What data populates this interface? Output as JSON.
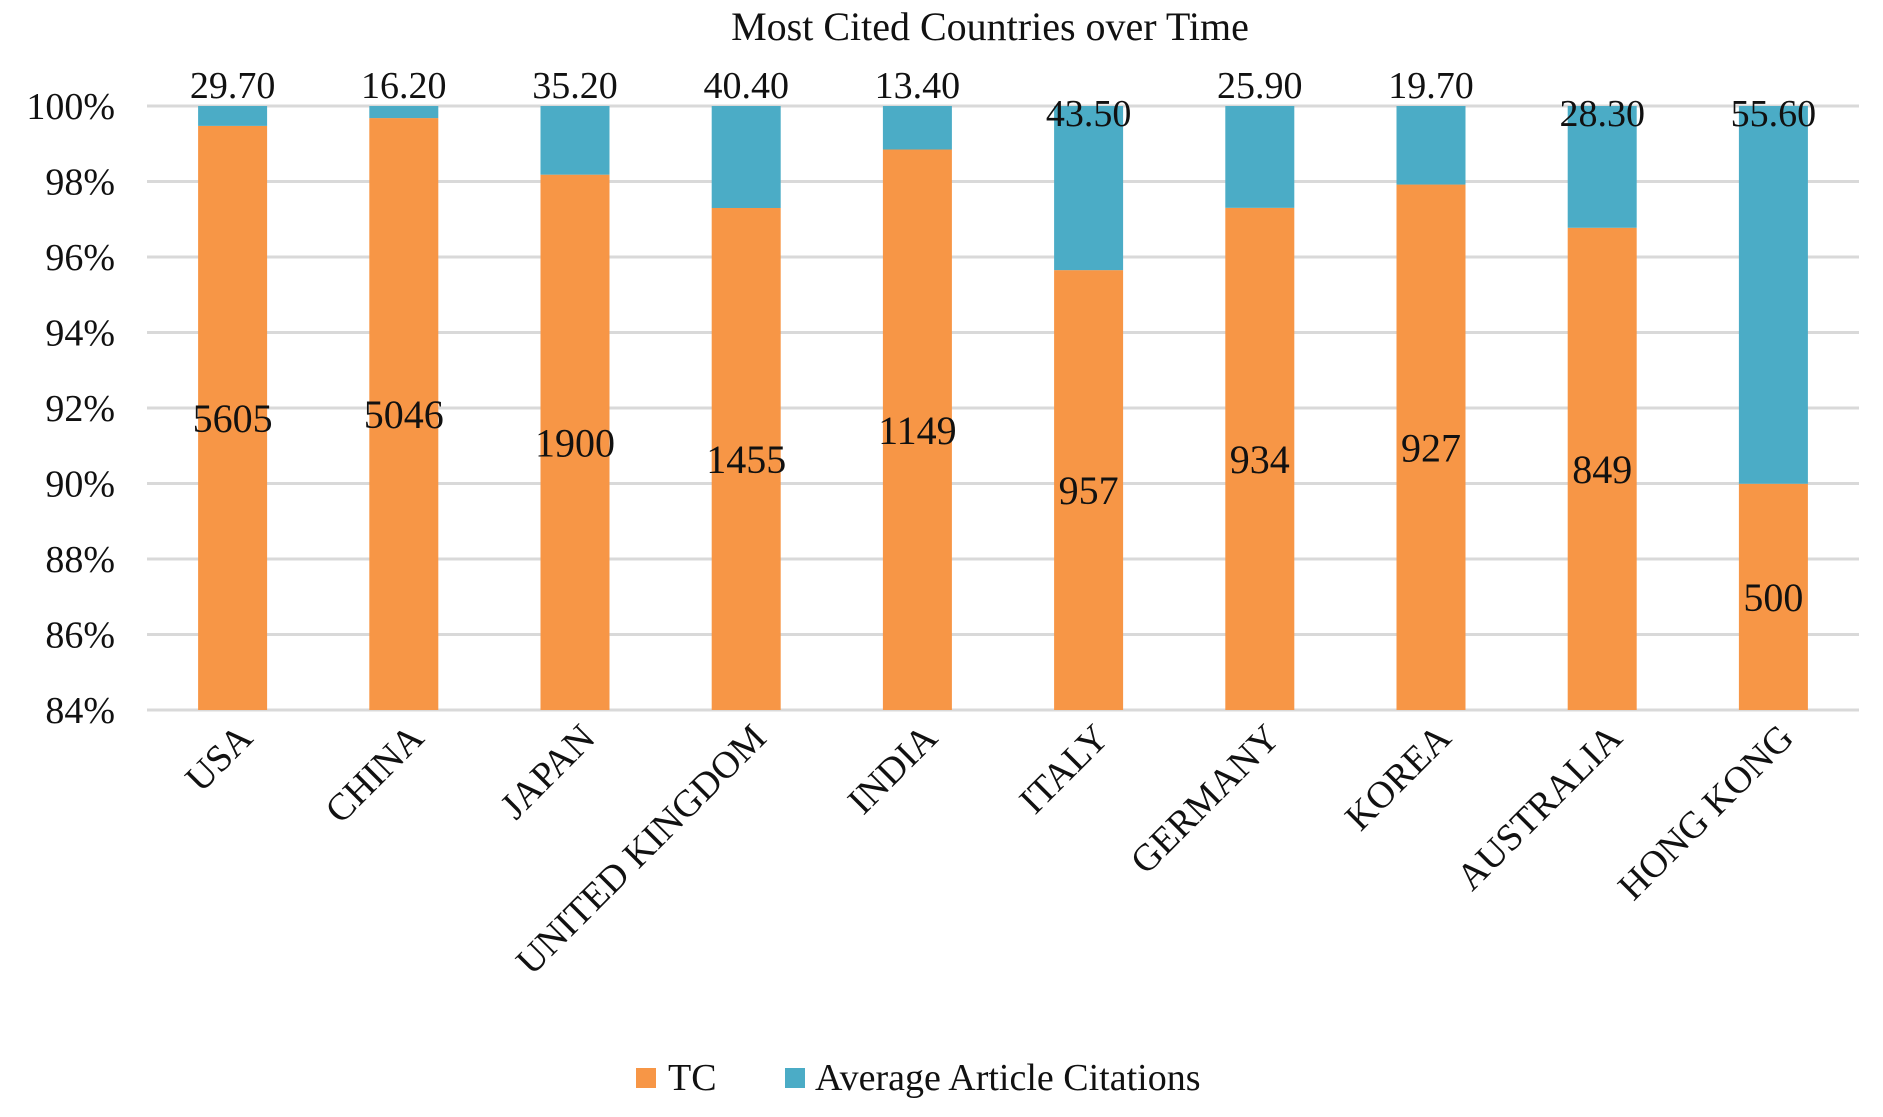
{
  "chart_data": {
    "type": "bar",
    "stacked": "percent",
    "title": "Most Cited Countries over Time",
    "xlabel": "",
    "ylabel": "",
    "ylim": [
      84,
      100
    ],
    "yticks": [
      "84%",
      "86%",
      "88%",
      "90%",
      "92%",
      "94%",
      "96%",
      "98%",
      "100%"
    ],
    "categories": [
      "USA",
      "CHINA",
      "JAPAN",
      "UNITED KINGDOM",
      "INDIA",
      "ITALY",
      "GERMANY",
      "KOREA",
      "AUSTRALIA",
      "HONG KONG"
    ],
    "series": [
      {
        "name": "TC",
        "color": "#F79646",
        "values": [
          5605,
          5046,
          1900,
          1455,
          1149,
          957,
          934,
          927,
          849,
          500
        ],
        "labels": [
          "5605",
          "5046",
          "1900",
          "1455",
          "1149",
          "957",
          "934",
          "927",
          "849",
          "500"
        ]
      },
      {
        "name": "Average Article Citations",
        "color": "#4BACC6",
        "values": [
          29.7,
          16.2,
          35.2,
          40.4,
          13.4,
          43.5,
          25.9,
          19.7,
          28.3,
          55.6
        ],
        "labels": [
          "29.70",
          "16.20",
          "35.20",
          "40.40",
          "13.40",
          "43.50",
          "25.90",
          "19.70",
          "28.30",
          "55.60"
        ]
      }
    ],
    "grid": true,
    "legend": "bottom"
  }
}
